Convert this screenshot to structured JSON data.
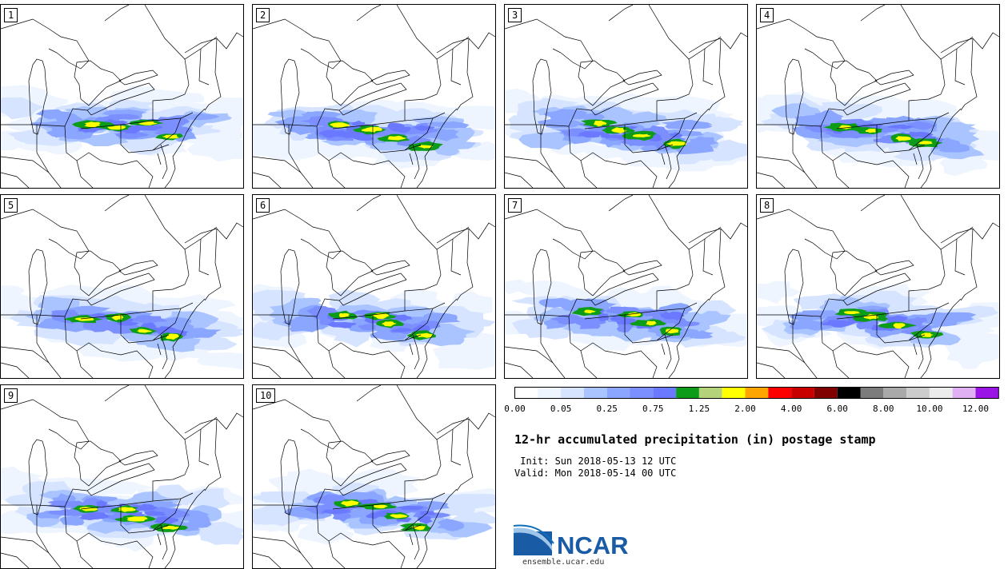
{
  "panels": [
    {
      "label": "1",
      "seed": 11,
      "bands": [
        [
          35,
          149
        ],
        [
          35,
          152
        ]
      ]
    },
    {
      "label": "2",
      "seed": 23,
      "bands": [
        [
          37,
          150
        ],
        [
          38,
          165
        ]
      ]
    },
    {
      "label": "3",
      "seed": 37,
      "bands": [
        [
          38,
          150
        ],
        [
          42,
          166
        ]
      ]
    },
    {
      "label": "4",
      "seed": 41,
      "bands": [
        [
          36,
          150
        ],
        [
          40,
          165
        ]
      ]
    },
    {
      "label": "5",
      "seed": 53,
      "bands": [
        [
          35,
          153
        ],
        [
          40,
          170
        ]
      ]
    },
    {
      "label": "6",
      "seed": 67,
      "bands": [
        [
          37,
          150
        ],
        [
          40,
          165
        ]
      ]
    },
    {
      "label": "7",
      "seed": 71,
      "bands": [
        [
          38,
          148
        ],
        [
          44,
          160
        ]
      ]
    },
    {
      "label": "8",
      "seed": 83,
      "bands": [
        [
          37,
          150
        ],
        [
          40,
          165
        ]
      ]
    },
    {
      "label": "9",
      "seed": 97,
      "bands": [
        [
          35,
          152
        ],
        [
          40,
          165
        ]
      ]
    },
    {
      "label": "10",
      "seed": 101,
      "bands": [
        [
          38,
          148
        ],
        [
          38,
          165
        ]
      ]
    }
  ],
  "colorbar": {
    "colors": [
      "#ffffff",
      "#eef5ff",
      "#d6e4ff",
      "#a9c4ff",
      "#8aa6ff",
      "#7b8fff",
      "#6a79ff",
      "#0d9c1a",
      "#b3d27a",
      "#ffff00",
      "#ffa500",
      "#ff0000",
      "#c80000",
      "#800000",
      "#000000",
      "#7c7c7c",
      "#a9a9a9",
      "#cccccc",
      "#ececec",
      "#e0b0f5",
      "#9a14e6"
    ],
    "ticks": [
      {
        "label": "0.00",
        "index": 0
      },
      {
        "label": "0.05",
        "index": 2
      },
      {
        "label": "0.25",
        "index": 4
      },
      {
        "label": "0.75",
        "index": 6
      },
      {
        "label": "1.25",
        "index": 8
      },
      {
        "label": "2.00",
        "index": 10
      },
      {
        "label": "4.00",
        "index": 12
      },
      {
        "label": "6.00",
        "index": 14
      },
      {
        "label": "8.00",
        "index": 16
      },
      {
        "label": "10.00",
        "index": 18
      },
      {
        "label": "12.00",
        "index": 20
      }
    ]
  },
  "title": "12-hr accumulated precipitation (in) postage stamp",
  "init": " Init: Sun 2018-05-13 12 UTC",
  "valid": "Valid: Mon 2018-05-14 00 UTC",
  "logo": {
    "text": "NCAR",
    "url": "ensemble.ucar.edu",
    "colors": {
      "brand": "#1a5ba6",
      "swoosh": "#0f6fb8"
    }
  }
}
